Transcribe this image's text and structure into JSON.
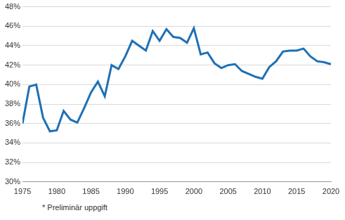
{
  "chart_data": {
    "type": "line",
    "annotations": [
      "* Preliminär uppgift"
    ],
    "x": [
      1975,
      1976,
      1977,
      1978,
      1979,
      1980,
      1981,
      1982,
      1983,
      1984,
      1985,
      1986,
      1987,
      1988,
      1989,
      1990,
      1991,
      1992,
      1993,
      1994,
      1995,
      1996,
      1997,
      1998,
      1999,
      2000,
      2001,
      2002,
      2003,
      2004,
      2005,
      2006,
      2007,
      2008,
      2009,
      2010,
      2011,
      2012,
      2013,
      2014,
      2015,
      2016,
      2017,
      2018,
      2019,
      2020
    ],
    "values": [
      36.0,
      39.8,
      40.0,
      36.6,
      35.2,
      35.3,
      37.3,
      36.4,
      36.1,
      37.6,
      39.2,
      40.3,
      38.8,
      42.0,
      41.6,
      42.9,
      44.5,
      44.0,
      43.5,
      45.5,
      44.5,
      45.7,
      44.9,
      44.8,
      44.3,
      45.8,
      43.1,
      43.3,
      42.2,
      41.7,
      42.0,
      42.1,
      41.4,
      41.1,
      40.8,
      40.6,
      41.8,
      42.4,
      43.4,
      43.5,
      43.5,
      43.7,
      42.9,
      42.4,
      42.3,
      42.1
    ],
    "color": "#1f70b4",
    "xlim": [
      1975,
      2020
    ],
    "xticks": [
      1975,
      1980,
      1985,
      1990,
      1995,
      2000,
      2005,
      2010,
      2015,
      2020
    ],
    "ylim": [
      30,
      48
    ],
    "yticks": [
      {
        "value": 30,
        "label": "30%"
      },
      {
        "value": 32,
        "label": "32%"
      },
      {
        "value": 34,
        "label": "34%"
      },
      {
        "value": 36,
        "label": "36%"
      },
      {
        "value": 38,
        "label": "38%"
      },
      {
        "value": 40,
        "label": "40%"
      },
      {
        "value": 42,
        "label": "42%"
      },
      {
        "value": 44,
        "label": "44%"
      },
      {
        "value": 46,
        "label": "46%"
      },
      {
        "value": 48,
        "label": "48%"
      }
    ],
    "grid": true
  }
}
